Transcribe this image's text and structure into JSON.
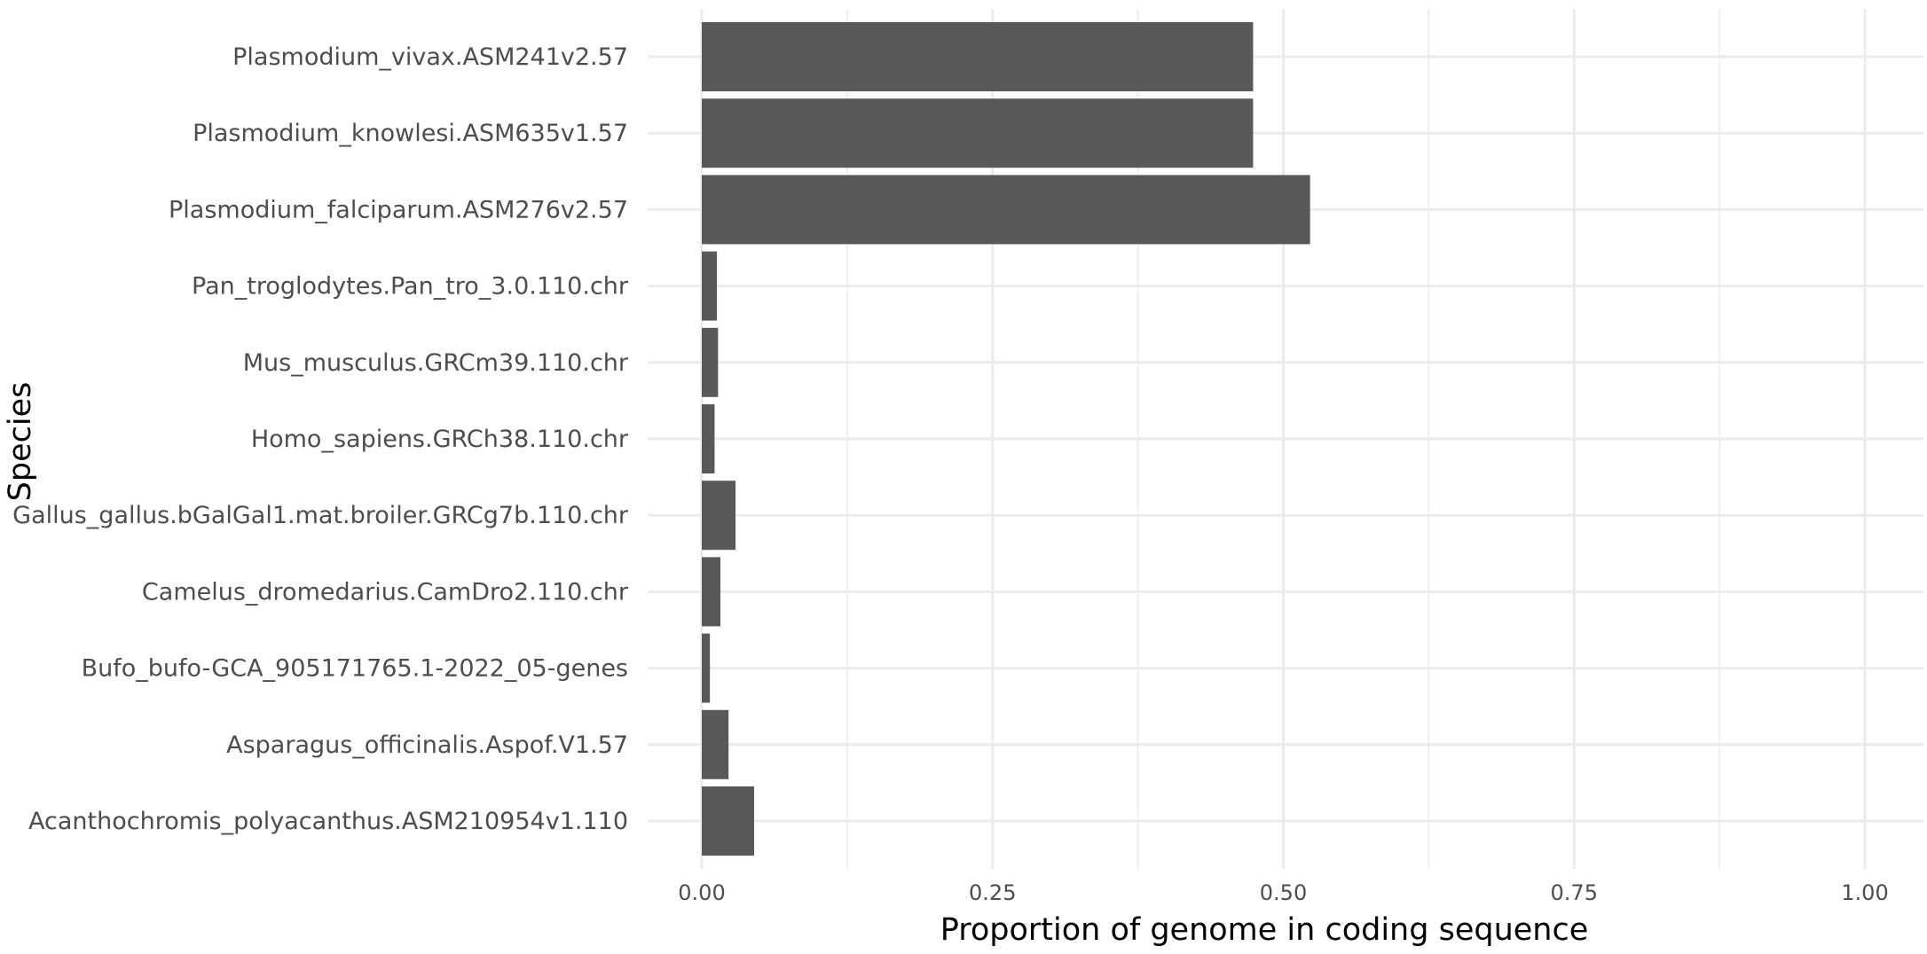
{
  "chart_data": {
    "type": "bar",
    "orientation": "horizontal",
    "xlabel": "Proportion of genome in coding sequence",
    "ylabel": "Species",
    "xlim": [
      0,
      1.0
    ],
    "x_ticks": [
      "0.00",
      "0.25",
      "0.50",
      "0.75",
      "1.00"
    ],
    "x_tick_values": [
      0,
      0.25,
      0.5,
      0.75,
      1.0
    ],
    "grid": true,
    "bar_color": "#595959",
    "grid_color": "#ebebeb",
    "categories": [
      "Plasmodium_vivax.ASM241v2.57",
      "Plasmodium_knowlesi.ASM635v1.57",
      "Plasmodium_falciparum.ASM276v2.57",
      "Pan_troglodytes.Pan_tro_3.0.110.chr",
      "Mus_musculus.GRCm39.110.chr",
      "Homo_sapiens.GRCh38.110.chr",
      "Gallus_gallus.bGalGal1.mat.broiler.GRCg7b.110.chr",
      "Camelus_dromedarius.CamDro2.110.chr",
      "Bufo_bufo-GCA_905171765.1-2022_05-genes",
      "Asparagus_officinalis.Aspof.V1.57",
      "Acanthochromis_polyacanthus.ASM210954v1.110"
    ],
    "values": [
      0.474,
      0.474,
      0.523,
      0.013,
      0.014,
      0.011,
      0.029,
      0.016,
      0.007,
      0.023,
      0.045
    ]
  }
}
